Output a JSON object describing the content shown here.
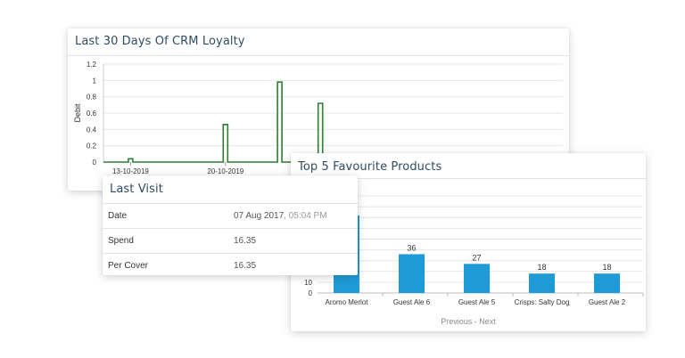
{
  "crm_card": {
    "title": "Last 30 Days Of CRM Loyalty"
  },
  "products_card": {
    "title": "Top 5 Favourite Products",
    "pager": {
      "previous": "Previous",
      "separator": "-",
      "next": "Next"
    }
  },
  "visit_card": {
    "title": "Last Visit",
    "rows": [
      {
        "label": "Date",
        "value": "07 Aug 2017",
        "value_suffix": ", 05:04 PM"
      },
      {
        "label": "Spend",
        "value": "16.35"
      },
      {
        "label": "Per Cover",
        "value": "16.35"
      }
    ]
  },
  "colors": {
    "line_series": "#2e7d32",
    "bar_fill": "#1e9ad6",
    "title_text": "#2f4b63",
    "grid": "#e6e6e6"
  },
  "chart_data": [
    {
      "type": "line",
      "title": "Last 30 Days Of CRM Loyalty",
      "ylabel": "Debit",
      "ylim": [
        0,
        1.2
      ],
      "yticks": [
        "0",
        "0.2",
        "0.4",
        "0.6",
        "0.8",
        "1",
        "1.2"
      ],
      "xtick_labels": [
        "13-10-2019",
        "20-10-2019"
      ],
      "series": [
        {
          "values": [
            {
              "date": "2019-10-13",
              "value": 0.04
            },
            {
              "date": "2019-10-20",
              "value": 0.46
            },
            {
              "date": "2019-10-24",
              "value": 0.98
            },
            {
              "date": "2019-10-27",
              "value": 0.72
            }
          ]
        }
      ],
      "grid": true,
      "legend": "none"
    },
    {
      "type": "bar",
      "title": "Top 5 Favourite Products",
      "categories": [
        "Aromo Merlot",
        "Guest Ale 6",
        "Guest Ale 5",
        "Crisps: Salty Dog",
        "Guest Ale 2"
      ],
      "values": [
        72,
        36,
        27,
        18,
        18
      ],
      "data_labels": [
        "",
        "36",
        "27",
        "18",
        "18"
      ],
      "yticks_visible": [
        "0",
        "10"
      ],
      "ylim": [
        0,
        90
      ],
      "grid": true,
      "legend": "none"
    }
  ]
}
